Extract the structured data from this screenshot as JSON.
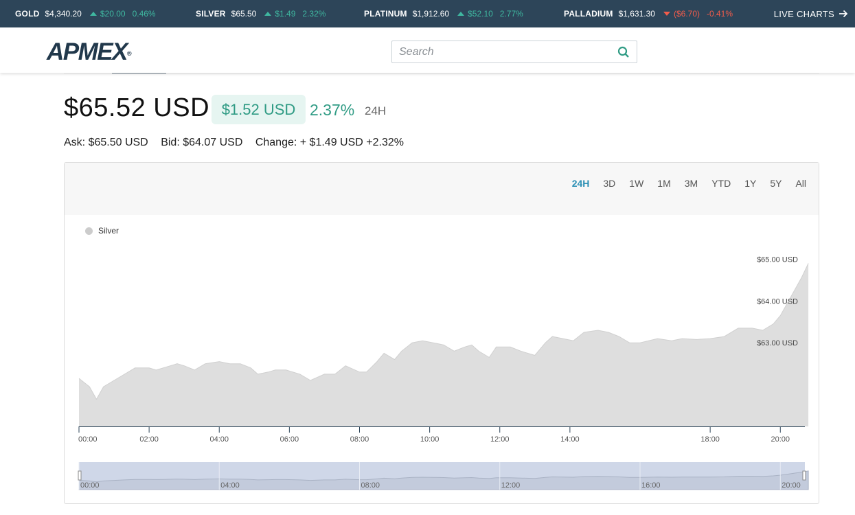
{
  "ticker": [
    {
      "name": "GOLD",
      "price": "$4,340.20",
      "change": "$20.00",
      "pct": "0.46%",
      "dir": "up"
    },
    {
      "name": "SILVER",
      "price": "$65.50",
      "change": "$1.49",
      "pct": "2.32%",
      "dir": "up"
    },
    {
      "name": "PLATINUM",
      "price": "$1,912.60",
      "change": "$52.10",
      "pct": "2.77%",
      "dir": "up"
    },
    {
      "name": "PALLADIUM",
      "price": "$1,631.30",
      "change": "($6.70)",
      "pct": "-0.41%",
      "dir": "down"
    }
  ],
  "live_charts_label": "LIVE CHARTS",
  "logo_text": "APMEX",
  "logo_mark": "®",
  "search": {
    "placeholder": "Search",
    "value": ""
  },
  "price": {
    "main": "$65.52 USD",
    "change_badge": "$1.52 USD",
    "change_pct": "2.37%",
    "period": "24H",
    "ask": "Ask: $65.50 USD",
    "bid": "Bid: $64.07 USD",
    "change_line": "Change: + $1.49 USD +2.32%"
  },
  "ranges": [
    "24H",
    "3D",
    "1W",
    "1M",
    "3M",
    "YTD",
    "1Y",
    "5Y",
    "All"
  ],
  "selected_range": "24H",
  "colors": {
    "ticker_bg": "#2d4559",
    "up": "#3fb8a0",
    "down": "#f25c4b",
    "accent": "#2b8fb4",
    "logo": "#21384b"
  },
  "chart_data": {
    "type": "area",
    "legend": "Silver",
    "x_unit": "hours",
    "x_ticks": [
      "00:00",
      "02:00",
      "04:00",
      "06:00",
      "08:00",
      "10:00",
      "12:00",
      "14:00",
      "18:00",
      "20:00"
    ],
    "x_tick_hours": [
      0,
      2,
      4,
      6,
      8,
      10,
      12,
      14,
      18,
      20
    ],
    "y_ticks": [
      "$63.00 USD",
      "$64.00 USD",
      "$65.00 USD"
    ],
    "y_tick_values": [
      63,
      64,
      65
    ],
    "navigator_ticks": [
      "00:00",
      "04:00",
      "08:00",
      "12:00",
      "16:00",
      "20:00"
    ],
    "navigator_tick_hours": [
      0,
      4,
      8,
      12,
      16,
      20
    ],
    "series": [
      {
        "name": "Silver",
        "x": [
          0,
          0.3,
          0.5,
          0.7,
          1.0,
          1.3,
          1.6,
          2.0,
          2.2,
          2.4,
          2.8,
          3.0,
          3.3,
          3.6,
          4.0,
          4.3,
          4.6,
          4.9,
          5.1,
          5.4,
          5.6,
          5.9,
          6.3,
          6.6,
          7.0,
          7.3,
          7.6,
          8.0,
          8.2,
          8.5,
          8.7,
          9.0,
          9.2,
          9.5,
          9.8,
          10.1,
          10.4,
          10.7,
          11.0,
          11.2,
          11.4,
          11.7,
          11.9,
          12.3,
          12.6,
          13.0,
          13.3,
          13.5,
          13.8,
          14.1,
          14.4,
          14.8,
          15.1,
          15.4,
          15.7,
          16.0,
          16.5,
          16.9,
          17.2,
          17.6,
          18.0,
          18.4,
          18.8,
          19.2,
          19.5,
          19.8,
          20.0,
          20.2,
          20.4,
          20.6,
          20.8
        ],
        "y": [
          62.15,
          61.95,
          61.65,
          61.95,
          62.1,
          62.25,
          62.4,
          62.4,
          62.35,
          62.4,
          62.5,
          62.45,
          62.35,
          62.5,
          62.55,
          62.5,
          62.5,
          62.4,
          62.25,
          62.3,
          62.35,
          62.35,
          62.25,
          62.1,
          62.25,
          62.25,
          62.45,
          62.3,
          62.3,
          62.55,
          62.75,
          62.6,
          62.8,
          63.0,
          63.05,
          63.0,
          62.95,
          62.8,
          62.9,
          62.95,
          62.8,
          62.65,
          62.9,
          62.9,
          62.8,
          62.7,
          63.0,
          63.15,
          63.1,
          63.05,
          63.25,
          63.3,
          63.25,
          63.15,
          63.0,
          63.0,
          63.1,
          63.05,
          63.1,
          63.08,
          63.1,
          63.15,
          63.35,
          63.35,
          63.3,
          63.45,
          63.65,
          63.95,
          64.25,
          64.55,
          64.9
        ]
      }
    ],
    "xlim": [
      0,
      20.7
    ],
    "ylim": [
      61.0,
      65.5
    ]
  }
}
